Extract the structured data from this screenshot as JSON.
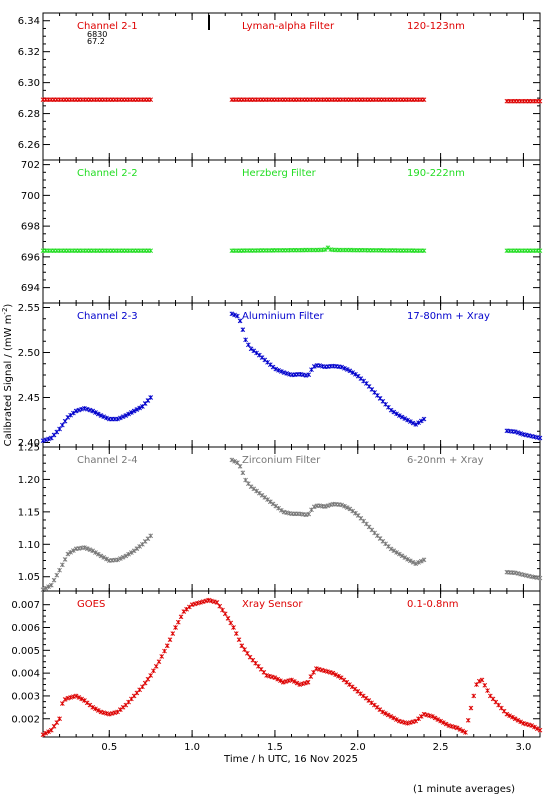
{
  "figure": {
    "ylabel": "Calibrated Signal / (mW m",
    "ylabel_sup": "-2",
    "ylabel_close": ")",
    "xlabel": "Time / h UTC, 16 Nov 2025",
    "footnote": "(1 minute averages)",
    "x_tick_labels": [
      "0.5",
      "1.0",
      "1.5",
      "2.0",
      "2.5",
      "3.0"
    ]
  },
  "chart_data": [
    {
      "type": "scatter",
      "labels": [
        "Channel 2-1",
        "Lyman-alpha Filter",
        "120-123nm"
      ],
      "annotations": [
        "6830",
        "67.2"
      ],
      "color": "#dd0000",
      "xlim": [
        0.1,
        3.1
      ],
      "ylim": [
        6.25,
        6.345
      ],
      "yticks": [
        6.26,
        6.28,
        6.3,
        6.32,
        6.34
      ],
      "ytick_labels": [
        "6.26",
        "6.28",
        "6.30",
        "6.32",
        "6.34"
      ],
      "segments": [
        {
          "x": [
            0.1,
            0.75
          ],
          "y": [
            6.289,
            6.289
          ]
        },
        {
          "x": [
            1.24,
            2.4
          ],
          "y": [
            6.289,
            6.289
          ]
        },
        {
          "x": [
            2.9,
            3.1
          ],
          "y": [
            6.288,
            6.288
          ]
        }
      ]
    },
    {
      "type": "scatter",
      "labels": [
        "Channel 2-2",
        "Herzberg Filter",
        "190-222nm"
      ],
      "color": "#22dd22",
      "xlim": [
        0.1,
        3.1
      ],
      "ylim": [
        693,
        702.3
      ],
      "yticks": [
        694,
        696,
        698,
        700,
        702
      ],
      "ytick_labels": [
        "694",
        "696",
        "698",
        "700",
        "702"
      ],
      "segments": [
        {
          "x": [
            0.1,
            0.75
          ],
          "y": [
            696.4,
            696.4
          ]
        },
        {
          "x": [
            1.24,
            1.8,
            1.82,
            1.84,
            2.4
          ],
          "y": [
            696.4,
            696.45,
            696.6,
            696.45,
            696.4
          ]
        },
        {
          "x": [
            2.9,
            3.1
          ],
          "y": [
            696.4,
            696.4
          ]
        }
      ]
    },
    {
      "type": "scatter",
      "labels": [
        "Channel 2-3",
        "Aluminium Filter",
        "17-80nm + Xray"
      ],
      "color": "#0000cc",
      "xlim": [
        0.1,
        3.1
      ],
      "ylim": [
        2.395,
        2.555
      ],
      "yticks": [
        2.4,
        2.45,
        2.5,
        2.55
      ],
      "ytick_labels": [
        "2.40",
        "2.45",
        "2.50",
        "2.55"
      ],
      "segments": [
        {
          "x": [
            0.1,
            0.15,
            0.2,
            0.25,
            0.3,
            0.35,
            0.4,
            0.45,
            0.5,
            0.55,
            0.6,
            0.65,
            0.7,
            0.75
          ],
          "y": [
            2.402,
            2.405,
            2.415,
            2.428,
            2.435,
            2.438,
            2.435,
            2.43,
            2.426,
            2.426,
            2.43,
            2.435,
            2.44,
            2.45
          ]
        },
        {
          "x": [
            1.24,
            1.28,
            1.3,
            1.32,
            1.35,
            1.4,
            1.45,
            1.5,
            1.55,
            1.6,
            1.65,
            1.7,
            1.73,
            1.76,
            1.8,
            1.85,
            1.9,
            1.95,
            2.0,
            2.05,
            2.1,
            2.15,
            2.2,
            2.25,
            2.3,
            2.35,
            2.4
          ],
          "y": [
            2.543,
            2.54,
            2.53,
            2.515,
            2.505,
            2.498,
            2.49,
            2.482,
            2.478,
            2.475,
            2.476,
            2.474,
            2.484,
            2.486,
            2.484,
            2.485,
            2.484,
            2.48,
            2.474,
            2.466,
            2.456,
            2.446,
            2.436,
            2.43,
            2.425,
            2.42,
            2.426
          ]
        },
        {
          "x": [
            2.9,
            2.95,
            3.0,
            3.05,
            3.1
          ],
          "y": [
            2.413,
            2.412,
            2.409,
            2.407,
            2.405
          ]
        }
      ]
    },
    {
      "type": "scatter",
      "labels": [
        "Channel 2-4",
        "Zirconium Filter",
        "6-20nm + Xray"
      ],
      "color": "#777777",
      "xlim": [
        0.1,
        3.1
      ],
      "ylim": [
        1.028,
        1.25
      ],
      "yticks": [
        1.05,
        1.1,
        1.15,
        1.2,
        1.25
      ],
      "ytick_labels": [
        "1.05",
        "1.10",
        "1.15",
        "1.20",
        "1.25"
      ],
      "segments": [
        {
          "x": [
            0.1,
            0.15,
            0.2,
            0.25,
            0.3,
            0.35,
            0.4,
            0.45,
            0.5,
            0.55,
            0.6,
            0.65,
            0.7,
            0.75
          ],
          "y": [
            1.03,
            1.037,
            1.06,
            1.085,
            1.093,
            1.095,
            1.09,
            1.082,
            1.075,
            1.076,
            1.082,
            1.09,
            1.1,
            1.113
          ]
        },
        {
          "x": [
            1.24,
            1.28,
            1.3,
            1.32,
            1.35,
            1.4,
            1.45,
            1.5,
            1.55,
            1.6,
            1.65,
            1.7,
            1.73,
            1.76,
            1.8,
            1.85,
            1.9,
            1.95,
            2.0,
            2.05,
            2.1,
            2.15,
            2.2,
            2.25,
            2.3,
            2.35,
            2.4
          ],
          "y": [
            1.23,
            1.225,
            1.215,
            1.2,
            1.19,
            1.18,
            1.17,
            1.16,
            1.15,
            1.147,
            1.147,
            1.145,
            1.157,
            1.16,
            1.158,
            1.162,
            1.161,
            1.155,
            1.145,
            1.132,
            1.118,
            1.105,
            1.093,
            1.085,
            1.077,
            1.07,
            1.076
          ]
        },
        {
          "x": [
            2.9,
            2.95,
            3.0,
            3.05,
            3.1
          ],
          "y": [
            1.057,
            1.056,
            1.053,
            1.05,
            1.048
          ]
        }
      ]
    },
    {
      "type": "scatter",
      "labels": [
        "GOES",
        "Xray Sensor",
        "0.1-0.8nm"
      ],
      "color": "#dd0000",
      "xlim": [
        0.1,
        3.1
      ],
      "ylim": [
        0.0012,
        0.0076
      ],
      "yticks": [
        0.002,
        0.003,
        0.004,
        0.005,
        0.006,
        0.007
      ],
      "ytick_labels": [
        "0.002",
        "0.003",
        "0.004",
        "0.005",
        "0.006",
        "0.007"
      ],
      "segments": [
        {
          "x": [
            0.1,
            0.15,
            0.2,
            0.22,
            0.25,
            0.3,
            0.35,
            0.4,
            0.45,
            0.5,
            0.55,
            0.6,
            0.65,
            0.7,
            0.75,
            0.8,
            0.85,
            0.9,
            0.95,
            1.0,
            1.05,
            1.1,
            1.15,
            1.2,
            1.25,
            1.3,
            1.35,
            1.4,
            1.45,
            1.5,
            1.55,
            1.6,
            1.65,
            1.7,
            1.72,
            1.75,
            1.8,
            1.85,
            1.9,
            1.95,
            2.0,
            2.05,
            2.1,
            2.15,
            2.2,
            2.25,
            2.3,
            2.35,
            2.4,
            2.45,
            2.5,
            2.55,
            2.6,
            2.65,
            2.7,
            2.72,
            2.75,
            2.8,
            2.85,
            2.9,
            2.95,
            3.0,
            3.05,
            3.1
          ],
          "y": [
            0.0013,
            0.0015,
            0.002,
            0.0028,
            0.0029,
            0.003,
            0.0028,
            0.0025,
            0.0023,
            0.0022,
            0.0023,
            0.0026,
            0.003,
            0.0034,
            0.0039,
            0.0045,
            0.0052,
            0.006,
            0.0067,
            0.007,
            0.0071,
            0.0072,
            0.0071,
            0.0066,
            0.006,
            0.0052,
            0.0047,
            0.0043,
            0.0039,
            0.0038,
            0.0036,
            0.0037,
            0.0035,
            0.0036,
            0.0039,
            0.0042,
            0.0041,
            0.004,
            0.0038,
            0.0035,
            0.0032,
            0.0029,
            0.0026,
            0.0023,
            0.0021,
            0.0019,
            0.0018,
            0.0019,
            0.0022,
            0.0021,
            0.0019,
            0.0017,
            0.0016,
            0.0014,
            0.003,
            0.0036,
            0.0037,
            0.003,
            0.0026,
            0.0022,
            0.002,
            0.0018,
            0.0017,
            0.0015
          ]
        }
      ]
    }
  ]
}
